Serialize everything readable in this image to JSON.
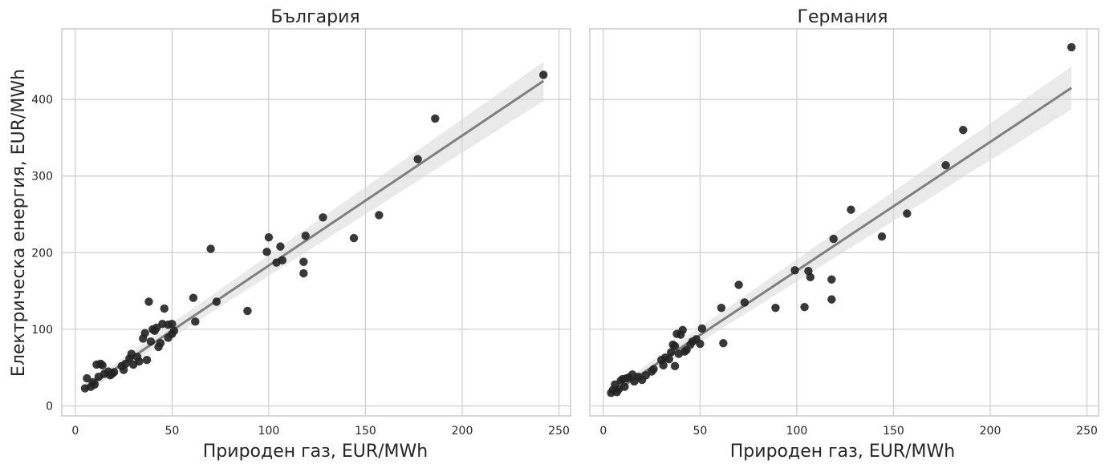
{
  "colors": {
    "point": "#222222",
    "fit_line": "#808080",
    "ci_band": "#d9d9d9",
    "grid": "#cccccc",
    "frame": "#cccccc"
  },
  "chart_data": {
    "type": "scatter",
    "shared_y": true,
    "ylabel": "Електрическа енергия, EUR/MWh",
    "xlabel": "Природен газ, EUR/MWh",
    "xlim": [
      -7,
      256
    ],
    "ylim": [
      -13,
      492
    ],
    "xticks": [
      0,
      50,
      100,
      150,
      200,
      250
    ],
    "yticks": [
      0,
      100,
      200,
      300,
      400
    ],
    "grid": true,
    "panels": [
      {
        "title": "България",
        "fit": {
          "x": [
            5,
            242
          ],
          "y": [
            22,
            424
          ]
        },
        "ci": {
          "lower": [
            17,
            398
          ],
          "upper": [
            28,
            449
          ]
        },
        "points": [
          [
            5,
            23
          ],
          [
            6,
            36
          ],
          [
            8,
            25
          ],
          [
            9,
            31
          ],
          [
            10,
            28
          ],
          [
            11,
            54
          ],
          [
            12,
            38
          ],
          [
            13,
            55
          ],
          [
            14,
            53
          ],
          [
            15,
            42
          ],
          [
            17,
            45
          ],
          [
            18,
            40
          ],
          [
            19,
            42
          ],
          [
            20,
            44
          ],
          [
            24,
            52
          ],
          [
            25,
            47
          ],
          [
            26,
            55
          ],
          [
            28,
            62
          ],
          [
            29,
            68
          ],
          [
            30,
            54
          ],
          [
            32,
            64
          ],
          [
            33,
            58
          ],
          [
            35,
            88
          ],
          [
            36,
            95
          ],
          [
            37,
            60
          ],
          [
            38,
            136
          ],
          [
            39,
            84
          ],
          [
            40,
            100
          ],
          [
            41,
            98
          ],
          [
            42,
            102
          ],
          [
            43,
            77
          ],
          [
            44,
            82
          ],
          [
            45,
            107
          ],
          [
            46,
            127
          ],
          [
            48,
            106
          ],
          [
            48,
            89
          ],
          [
            50,
            107
          ],
          [
            50,
            94
          ],
          [
            51,
            98
          ],
          [
            61,
            141
          ],
          [
            62,
            110
          ],
          [
            70,
            205
          ],
          [
            73,
            136
          ],
          [
            89,
            124
          ],
          [
            99,
            201
          ],
          [
            100,
            220
          ],
          [
            104,
            187
          ],
          [
            106,
            208
          ],
          [
            107,
            190
          ],
          [
            118,
            188
          ],
          [
            118,
            173
          ],
          [
            119,
            222
          ],
          [
            128,
            246
          ],
          [
            144,
            219
          ],
          [
            157,
            249
          ],
          [
            177,
            322
          ],
          [
            186,
            375
          ],
          [
            242,
            432
          ]
        ]
      },
      {
        "title": "Германия",
        "fit": {
          "x": [
            5,
            242
          ],
          "y": [
            17,
            415
          ]
        },
        "ci": {
          "lower": [
            12,
            387
          ],
          "upper": [
            23,
            443
          ]
        },
        "points": [
          [
            4,
            17
          ],
          [
            5,
            21
          ],
          [
            6,
            28
          ],
          [
            7,
            18
          ],
          [
            8,
            22
          ],
          [
            9,
            33
          ],
          [
            10,
            35
          ],
          [
            11,
            25
          ],
          [
            12,
            36
          ],
          [
            13,
            37
          ],
          [
            15,
            41
          ],
          [
            16,
            32
          ],
          [
            18,
            38
          ],
          [
            20,
            34
          ],
          [
            22,
            40
          ],
          [
            25,
            45
          ],
          [
            26,
            48
          ],
          [
            30,
            60
          ],
          [
            31,
            53
          ],
          [
            32,
            63
          ],
          [
            34,
            61
          ],
          [
            35,
            70
          ],
          [
            36,
            80
          ],
          [
            37,
            78
          ],
          [
            37,
            52
          ],
          [
            38,
            94
          ],
          [
            39,
            68
          ],
          [
            40,
            93
          ],
          [
            41,
            99
          ],
          [
            42,
            71
          ],
          [
            43,
            73
          ],
          [
            45,
            80
          ],
          [
            46,
            84
          ],
          [
            48,
            87
          ],
          [
            50,
            81
          ],
          [
            51,
            101
          ],
          [
            61,
            128
          ],
          [
            62,
            82
          ],
          [
            70,
            158
          ],
          [
            73,
            135
          ],
          [
            89,
            128
          ],
          [
            99,
            177
          ],
          [
            104,
            129
          ],
          [
            106,
            176
          ],
          [
            107,
            168
          ],
          [
            118,
            165
          ],
          [
            118,
            139
          ],
          [
            119,
            218
          ],
          [
            128,
            256
          ],
          [
            144,
            221
          ],
          [
            157,
            251
          ],
          [
            177,
            314
          ],
          [
            186,
            360
          ],
          [
            242,
            468
          ]
        ]
      }
    ]
  }
}
